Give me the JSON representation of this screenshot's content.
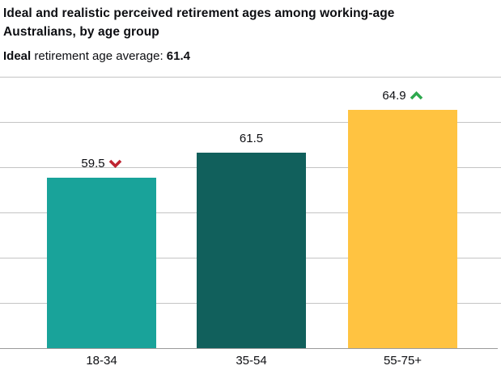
{
  "chart_data": {
    "type": "bar",
    "title": "Ideal and realistic perceived retirement ages among working-age Australians, by age group",
    "subtitle": {
      "bold_prefix": "Ideal",
      "regular_text": " retirement age average: ",
      "bold_value": "61.4"
    },
    "categories": [
      "18-34",
      "35-54",
      "55-75+"
    ],
    "values": [
      59.5,
      61.5,
      64.9
    ],
    "value_labels": [
      "59.5",
      "61.5",
      "64.9"
    ],
    "trend_indicators": [
      "down",
      "none",
      "up"
    ],
    "bar_colors": [
      "#19A39A",
      "#11605C",
      "#FFC341"
    ],
    "indicator_colors": {
      "down": "#BE2431",
      "up": "#2EA84E"
    },
    "xlabel": "",
    "ylabel": "",
    "ylim": [
      46,
      67.5
    ],
    "grid": true,
    "gridline_count": 7,
    "legend": "none"
  },
  "theme": {
    "text_color": "#0D0E12",
    "gridline_color": "#C4C4C4",
    "axis_line_color": "#9B9B9B",
    "background_color": "#FFFFFF"
  }
}
